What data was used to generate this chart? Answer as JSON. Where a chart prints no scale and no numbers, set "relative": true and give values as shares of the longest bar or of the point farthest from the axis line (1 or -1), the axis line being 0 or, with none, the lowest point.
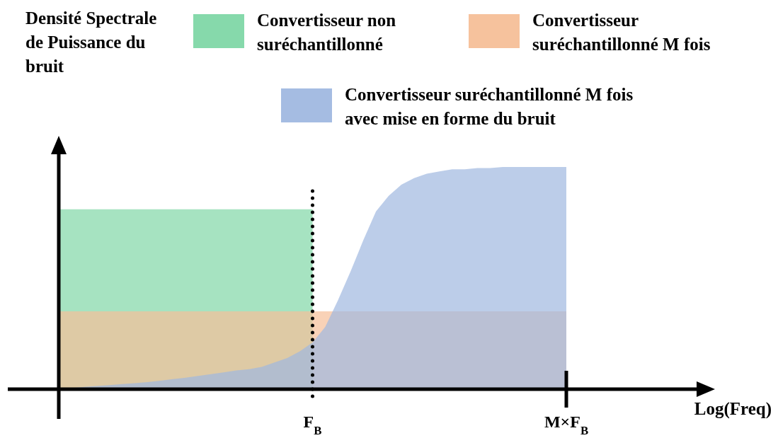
{
  "chart_data": {
    "type": "area",
    "relative": true,
    "annotations": [
      "Densité Spectrale de Puissance du bruit",
      "Log(Freq)"
    ],
    "categories": [
      null,
      null,
      null,
      null,
      null,
      null,
      null,
      null,
      null,
      null,
      null,
      null,
      null,
      null,
      null,
      null,
      null,
      null,
      null,
      null,
      "F$_{B}$",
      null,
      null,
      null,
      null,
      null,
      null,
      null,
      null,
      null,
      null,
      null,
      null,
      null,
      null,
      null,
      null,
      null,
      null,
      null,
      "M×F$_{B}$"
    ],
    "legend": "top",
    "grid": false,
    "ref_lines": [
      {
        "axis": "x",
        "value": "F$_{B}$",
        "line_style": "dotted",
        "color": "#000000"
      }
    ],
    "series": [
      {
        "name": "Convertisseur non suréchantillonné",
        "color": "#80d7a6",
        "values": [
          0.81,
          0.81,
          0.81,
          0.81,
          0.81,
          0.81,
          0.81,
          0.81,
          0.81,
          0.81,
          0.81,
          0.81,
          0.81,
          0.81,
          0.81,
          0.81,
          0.81,
          0.81,
          0.81,
          0.81,
          0.81,
          null,
          null,
          null,
          null,
          null,
          null,
          null,
          null,
          null,
          null,
          null,
          null,
          null,
          null,
          null,
          null,
          null,
          null,
          null,
          null
        ]
      },
      {
        "name": "Convertisseur suréchantillonné M fois",
        "color": "#f6bf98",
        "values": [
          0.35,
          0.35,
          0.35,
          0.35,
          0.35,
          0.35,
          0.35,
          0.35,
          0.35,
          0.35,
          0.35,
          0.35,
          0.35,
          0.35,
          0.35,
          0.35,
          0.35,
          0.35,
          0.35,
          0.35,
          0.35,
          0.35,
          0.35,
          0.35,
          0.35,
          0.35,
          0.35,
          0.35,
          0.35,
          0.35,
          0.35,
          0.35,
          0.35,
          0.35,
          0.35,
          0.35,
          0.35,
          0.35,
          0.35,
          0.35,
          0.35
        ]
      },
      {
        "name": "Convertisseur suréchantillonné M fois avec mise en forme du bruit",
        "color": "#a0b8e0",
        "values": [
          0,
          0.005,
          0.01,
          0.014,
          0.018,
          0.023,
          0.027,
          0.032,
          0.038,
          0.045,
          0.052,
          0.06,
          0.068,
          0.076,
          0.084,
          0.09,
          0.1,
          0.12,
          0.14,
          0.17,
          0.21,
          0.28,
          0.4,
          0.53,
          0.67,
          0.8,
          0.87,
          0.92,
          0.95,
          0.97,
          0.98,
          0.99,
          0.99,
          0.995,
          0.995,
          1,
          1,
          1,
          1,
          1,
          1
        ]
      }
    ]
  }
}
